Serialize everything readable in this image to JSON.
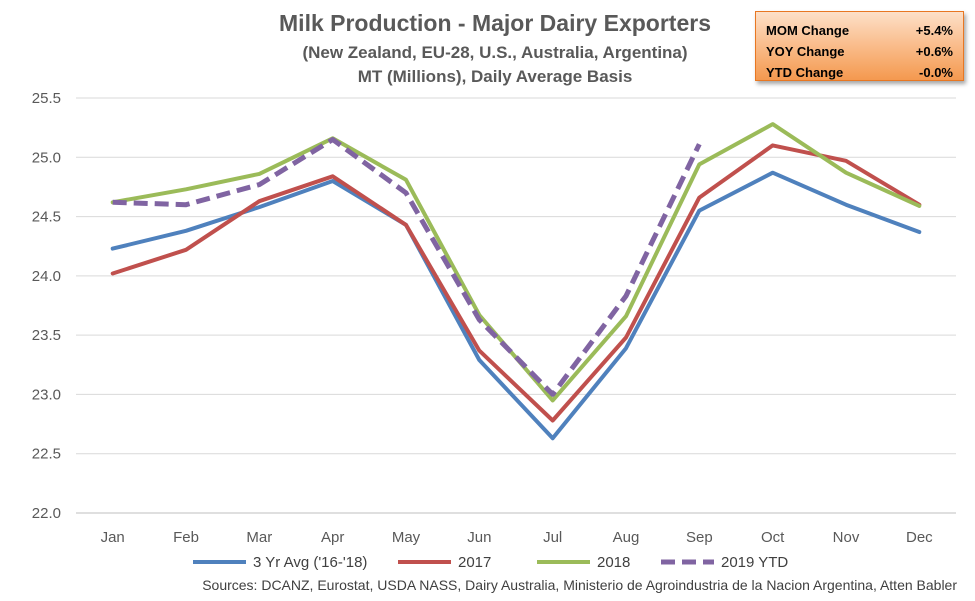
{
  "stats": {
    "rows": [
      {
        "label": "MOM Change",
        "value": "+5.4%"
      },
      {
        "label": "YOY Change",
        "value": "+0.6%"
      },
      {
        "label": "YTD Change",
        "value": "-0.0%"
      }
    ]
  },
  "source": "Sources: DCANZ, Eurostat, USDA NASS, Dairy Australia, Ministerio de Agroindustria de la Nacion Argentina, Atten Babler",
  "chart_data": {
    "type": "line",
    "title": "Milk Production - Major Dairy Exporters",
    "subtitle_lines": [
      "(New Zealand, EU-28, U.S., Australia, Argentina)",
      "MT (Millions), Daily Average Basis"
    ],
    "categories": [
      "Jan",
      "Feb",
      "Mar",
      "Apr",
      "May",
      "Jun",
      "Jul",
      "Aug",
      "Sep",
      "Oct",
      "Nov",
      "Dec"
    ],
    "ylim": [
      22.0,
      25.5
    ],
    "yticks": [
      22.0,
      22.5,
      23.0,
      23.5,
      24.0,
      24.5,
      25.0,
      25.5
    ],
    "ytick_labels": [
      "22.0",
      "22.5",
      "23.0",
      "23.5",
      "24.0",
      "24.5",
      "25.0",
      "25.5"
    ],
    "grid": true,
    "legend_position": "bottom",
    "series": [
      {
        "name": "3 Yr Avg ('16-'18)",
        "color": "#4f81bd",
        "dashed": false,
        "values": [
          24.23,
          24.38,
          24.58,
          24.8,
          24.43,
          23.29,
          22.63,
          23.39,
          24.55,
          24.87,
          24.6,
          24.37
        ]
      },
      {
        "name": "2017",
        "color": "#c0504d",
        "dashed": false,
        "values": [
          24.02,
          24.22,
          24.63,
          24.84,
          24.43,
          23.37,
          22.78,
          23.48,
          24.66,
          25.1,
          24.97,
          24.6
        ]
      },
      {
        "name": "2018",
        "color": "#9bbb59",
        "dashed": false,
        "values": [
          24.62,
          24.73,
          24.86,
          25.16,
          24.81,
          23.67,
          22.95,
          23.66,
          24.94,
          25.28,
          24.87,
          24.59
        ]
      },
      {
        "name": "2019 YTD",
        "color": "#8064a2",
        "dashed": true,
        "values": [
          24.62,
          24.6,
          24.77,
          25.15,
          24.7,
          23.63,
          23.0,
          23.83,
          25.11,
          null,
          null,
          null
        ]
      }
    ]
  }
}
